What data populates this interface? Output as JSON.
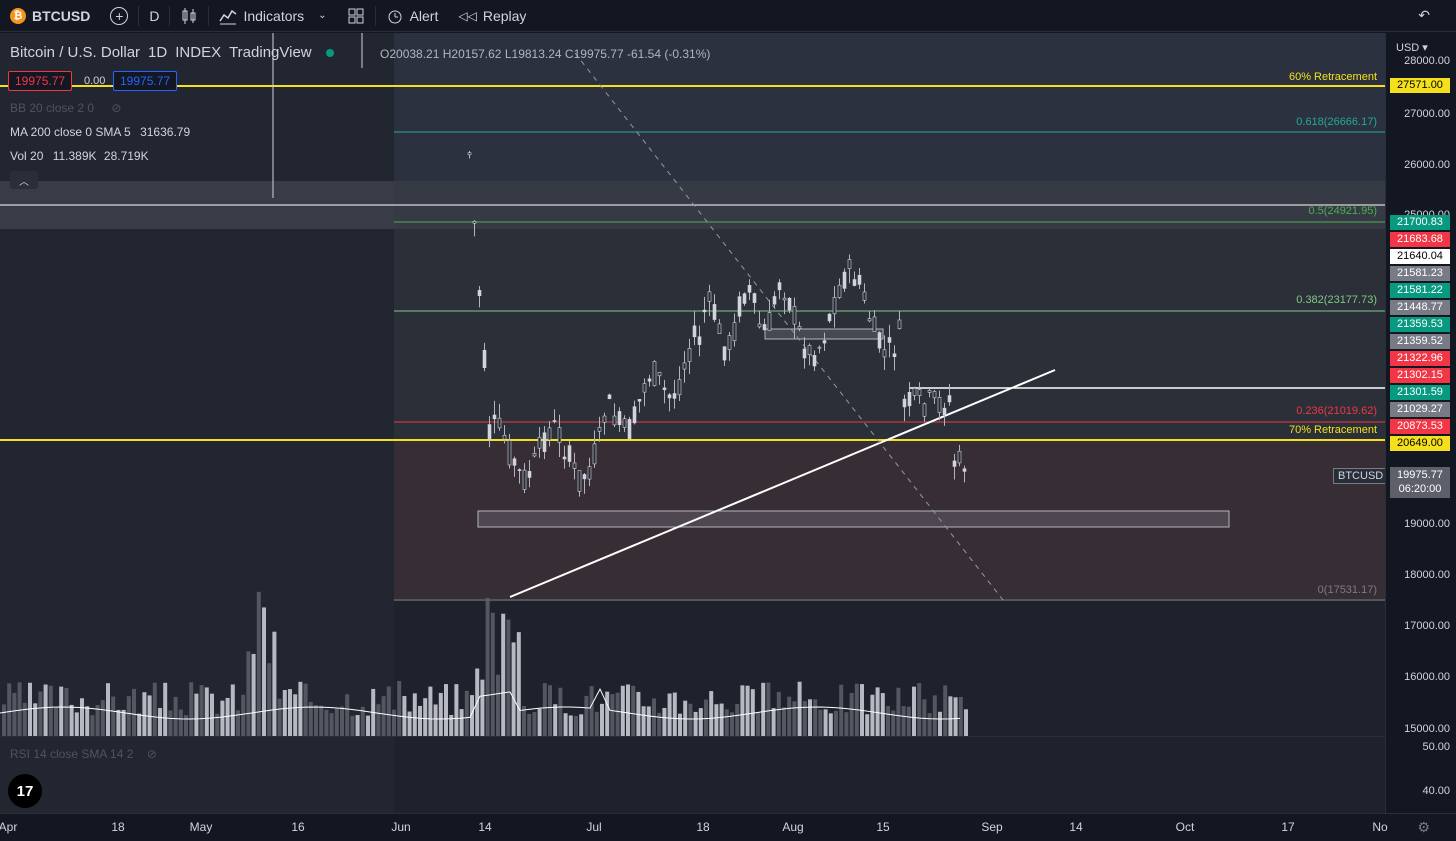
{
  "toolbar": {
    "symbol": "BTCUSD",
    "interval": "D",
    "indicators_label": "Indicators",
    "alert_label": "Alert",
    "replay_label": "Replay"
  },
  "legend": {
    "title": "Bitcoin / U.S. Dollar",
    "interval": "1D",
    "exchange": "INDEX",
    "source": "TradingView",
    "open_label": "O",
    "open": "20038.21",
    "high_label": "H",
    "high": "20157.62",
    "low_label": "L",
    "low": "19813.24",
    "close_label": "C",
    "close": "19975.77",
    "change": "-61.54 (-0.31%)",
    "bid": "19975.77",
    "spread": "0.00",
    "ask": "19975.77"
  },
  "indicators": {
    "bb": "BB 20 close 2 0",
    "ma": "MA 200 close 0 SMA 5",
    "ma_value": "31636.79",
    "vol": "Vol 20",
    "vol_value1": "11.389K",
    "vol_value2": "28.719K",
    "rsi": "RSI 14 close SMA 14 2"
  },
  "price_axis": {
    "currency": "USD",
    "ticks": [
      "28000.00",
      "27000.00",
      "26000.00",
      "25000.00",
      "19000.00",
      "18000.00",
      "17000.00",
      "16000.00",
      "15000.00"
    ],
    "rsi_ticks": [
      "50.00",
      "40.00"
    ]
  },
  "price_tags": [
    {
      "label": "27571.00",
      "color": "#f5e11b",
      "text": "#000000"
    },
    {
      "label": "21700.83",
      "color": "#089981",
      "text": "#ffffff"
    },
    {
      "label": "21683.68",
      "color": "#f23645",
      "text": "#ffffff"
    },
    {
      "label": "21640.04",
      "color": "#ffffff",
      "text": "#000000"
    },
    {
      "label": "21581.23",
      "color": "#787b86",
      "text": "#ffffff"
    },
    {
      "label": "21581.22",
      "color": "#089981",
      "text": "#ffffff"
    },
    {
      "label": "21448.77",
      "color": "#787b86",
      "text": "#ffffff"
    },
    {
      "label": "21359.53",
      "color": "#089981",
      "text": "#ffffff"
    },
    {
      "label": "21359.52",
      "color": "#787b86",
      "text": "#ffffff"
    },
    {
      "label": "21322.96",
      "color": "#f23645",
      "text": "#ffffff"
    },
    {
      "label": "21302.15",
      "color": "#f23645",
      "text": "#ffffff"
    },
    {
      "label": "21301.59",
      "color": "#089981",
      "text": "#ffffff"
    },
    {
      "label": "21029.27",
      "color": "#787b86",
      "text": "#ffffff"
    },
    {
      "label": "20873.53",
      "color": "#f23645",
      "text": "#ffffff"
    },
    {
      "label": "20649.00",
      "color": "#f5e11b",
      "text": "#000000"
    }
  ],
  "last_price": {
    "symbol": "BTCUSD",
    "price": "19975.77",
    "countdown": "06:20:00"
  },
  "fib_labels": [
    {
      "text": "60% Retracement",
      "color": "#f5e11b"
    },
    {
      "text": "0.618(26666.17)",
      "color": "#22ab94"
    },
    {
      "text": "0.5(24921.95)",
      "color": "#4caf50"
    },
    {
      "text": "0.382(23177.73)",
      "color": "#81c784"
    },
    {
      "text": "0.236(21019.62)",
      "color": "#f23645"
    },
    {
      "text": "70% Retracement",
      "color": "#f5e11b"
    },
    {
      "text": "0(17531.17)",
      "color": "#787b86"
    }
  ],
  "time_axis": [
    "Apr",
    "18",
    "May",
    "16",
    "Jun",
    "14",
    "Jul",
    "18",
    "Aug",
    "15",
    "Sep",
    "14",
    "Oct",
    "17",
    "No"
  ],
  "colors": {
    "background": "#1e222d",
    "accent_yellow": "#f5e11b",
    "up": "#089981",
    "down": "#f23645"
  }
}
